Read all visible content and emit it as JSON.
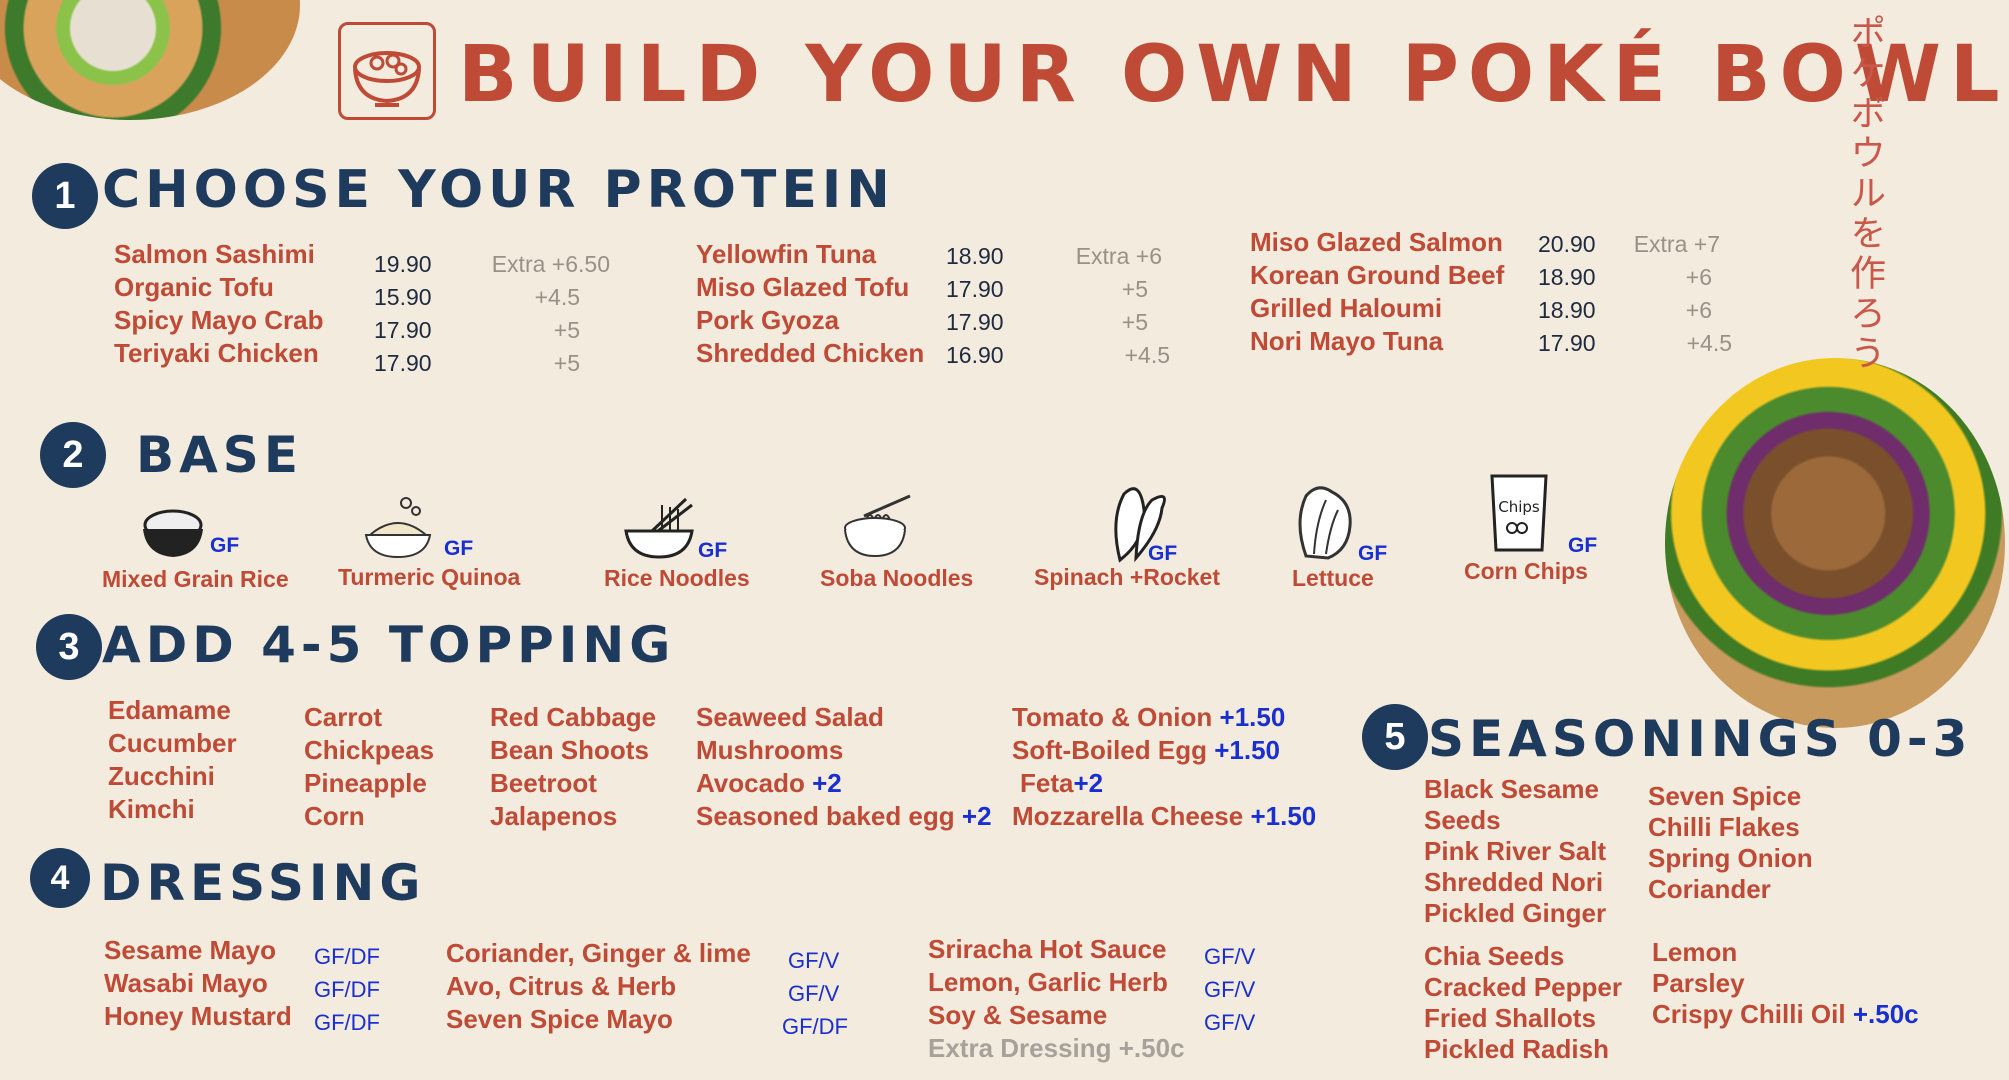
{
  "title": "BUILD YOUR OWN POKÉ BOWL",
  "japanese": "ポケボウルを作ろう",
  "colors": {
    "accent": "#bf4a36",
    "navy": "#1e3a5c",
    "tag_blue": "#1a2fd0",
    "background": "#f3ebdd"
  },
  "icons": [
    "poke-bowl-logo-icon",
    "rice-bowl-icon",
    "quinoa-bowl-icon",
    "noodle-bowl-icon",
    "soba-bowl-icon",
    "spinach-icon",
    "lettuce-icon",
    "chips-bag-icon"
  ],
  "protein": {
    "number": "1",
    "heading": "CHOOSE YOUR PROTEIN",
    "col1": [
      {
        "name": "Salmon Sashimi",
        "price": "19.90",
        "extra": "Extra +6.50"
      },
      {
        "name": "Organic Tofu",
        "price": "15.90",
        "extra": "+4.5"
      },
      {
        "name": "Spicy Mayo Crab",
        "price": "17.90",
        "extra": "+5"
      },
      {
        "name": "Teriyaki Chicken",
        "price": "17.90",
        "extra": "+5"
      }
    ],
    "col2": [
      {
        "name": "Yellowfin Tuna",
        "price": "18.90",
        "extra": "Extra +6"
      },
      {
        "name": "Miso Glazed Tofu",
        "price": "17.90",
        "extra": "+5"
      },
      {
        "name": "Pork Gyoza",
        "price": "17.90",
        "extra": "+5"
      },
      {
        "name": "Shredded Chicken",
        "price": "16.90",
        "extra": "+4.5"
      }
    ],
    "col3": [
      {
        "name": "Miso Glazed Salmon",
        "price": "20.90",
        "extra": "Extra +7"
      },
      {
        "name": "Korean Ground Beef",
        "price": "18.90",
        "extra": "+6"
      },
      {
        "name": "Grilled Haloumi",
        "price": "18.90",
        "extra": "+6"
      },
      {
        "name": "Nori Mayo Tuna",
        "price": "17.90",
        "extra": "+4.5"
      }
    ]
  },
  "base": {
    "number": "2",
    "heading": "BASE",
    "items": [
      {
        "label": "Mixed Grain Rice",
        "tag": "GF"
      },
      {
        "label": "Turmeric Quinoa",
        "tag": "GF"
      },
      {
        "label": "Rice Noodles",
        "tag": "GF"
      },
      {
        "label": "Soba Noodles",
        "tag": ""
      },
      {
        "label": "Spinach +Rocket",
        "tag": "GF"
      },
      {
        "label": "Lettuce",
        "tag": "GF"
      },
      {
        "label": "Corn Chips",
        "tag": "GF"
      }
    ],
    "chips_text": "Chips"
  },
  "topping": {
    "number": "3",
    "heading": "ADD 4-5 TOPPING",
    "col1": [
      "Edamame",
      "Cucumber",
      "Zucchini",
      "Kimchi"
    ],
    "col2": [
      "Carrot",
      "Chickpeas",
      "Pineapple",
      "Corn"
    ],
    "col3": [
      "Red Cabbage",
      "Bean Shoots",
      "Beetroot",
      "Jalapenos"
    ],
    "col4": [
      {
        "name": "Seaweed Salad",
        "extra": ""
      },
      {
        "name": "Mushrooms",
        "extra": ""
      },
      {
        "name": "Avocado",
        "extra": "+2"
      },
      {
        "name": "Seasoned baked egg",
        "extra": "+2"
      }
    ],
    "col5": [
      {
        "name": "Tomato & Onion",
        "extra": "+1.50"
      },
      {
        "name": "Soft-Boiled Egg",
        "extra": "+1.50"
      },
      {
        "name": "Feta",
        "extra": "+2"
      },
      {
        "name": "Mozzarella Cheese",
        "extra": "+1.50"
      }
    ]
  },
  "dressing": {
    "number": "4",
    "heading": "DRESSING",
    "col1": [
      {
        "name": "Sesame Mayo",
        "tag": "GF/DF"
      },
      {
        "name": "Wasabi Mayo",
        "tag": "GF/DF"
      },
      {
        "name": "Honey Mustard",
        "tag": "GF/DF"
      }
    ],
    "col2": [
      {
        "name": "Coriander, Ginger & lime",
        "tag": "GF/V"
      },
      {
        "name": "Avo, Citrus & Herb",
        "tag": "GF/V"
      },
      {
        "name": "Seven Spice Mayo",
        "tag": "GF/DF"
      }
    ],
    "col3": [
      {
        "name": "Sriracha Hot Sauce",
        "tag": "GF/V"
      },
      {
        "name": "Lemon, Garlic Herb",
        "tag": "GF/V"
      },
      {
        "name": "Soy & Sesame",
        "tag": "GF/V"
      }
    ],
    "extra_dressing": "Extra Dressing +.50c"
  },
  "seasonings": {
    "number": "5",
    "heading": "SEASONINGS 0-3",
    "col1a": [
      "Black Sesame",
      "Seeds",
      "Pink River Salt",
      "Shredded Nori",
      "Pickled Ginger"
    ],
    "col2a": [
      "Seven Spice",
      "Chilli Flakes",
      "Spring Onion",
      "Coriander"
    ],
    "col1b": [
      "Chia Seeds",
      "Cracked Pepper",
      "Fried Shallots",
      "Pickled Radish"
    ],
    "col2b": [
      "Lemon",
      "Parsley"
    ],
    "crispy": {
      "name": "Crispy Chilli Oil",
      "extra": "+.50c"
    }
  }
}
